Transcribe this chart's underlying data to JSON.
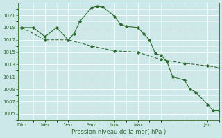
{
  "bg_color": "#cce8e8",
  "grid_color": "#ffffff",
  "line_color": "#2d6a2d",
  "title": "Pression niveau de la mer( hPa )",
  "ylim": [
    1004,
    1023
  ],
  "yticks": [
    1005,
    1007,
    1009,
    1011,
    1013,
    1015,
    1017,
    1019,
    1021
  ],
  "day_labels": [
    "Dim",
    "Mer",
    "Ven",
    "Sam",
    "Lun",
    "Mar",
    "Jeu"
  ],
  "day_positions": [
    0,
    1,
    2,
    3,
    4,
    5,
    8
  ],
  "xlim": [
    -0.15,
    8.5
  ],
  "series1_x": [
    0,
    0.5,
    1,
    1.5,
    2,
    2.25,
    2.5,
    3,
    3.25,
    3.5,
    4,
    4.25,
    4.5,
    5,
    5.25,
    5.5,
    5.75,
    6,
    6.25,
    6.5,
    7,
    7.25,
    7.5,
    8,
    8.25,
    8.5
  ],
  "series1_y": [
    1019,
    1019,
    1017.5,
    1019,
    1017,
    1018,
    1020,
    1022.2,
    1022.5,
    1022.3,
    1020.8,
    1019.5,
    1019.2,
    1019,
    1018,
    1017,
    1014.8,
    1014.5,
    1013.5,
    1011,
    1010.5,
    1009,
    1008.5,
    1006.5,
    1005.5,
    1005.5
  ],
  "series2_x": [
    0,
    1,
    2,
    3,
    4,
    5,
    6,
    7,
    8,
    8.5
  ],
  "series2_y": [
    1019,
    1017,
    1017,
    1016,
    1015.2,
    1015,
    1013.8,
    1013.2,
    1012.8,
    1012.5
  ]
}
